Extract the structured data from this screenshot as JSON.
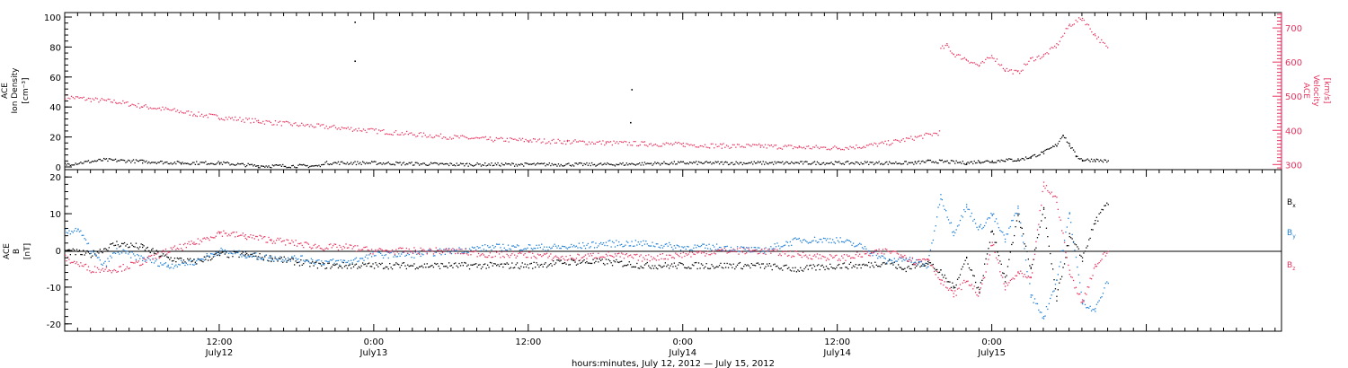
{
  "colors": {
    "black": "#000000",
    "pink": "#e8335f",
    "blue": "#1e7fd8"
  },
  "chart_data": [
    {
      "type": "scatter",
      "panel": "top",
      "ylabel_left": [
        "ACE",
        "Ion Density",
        "[cm⁻³]"
      ],
      "ylabel_right": [
        "ACE",
        "Velocity",
        "[km/s]"
      ],
      "yticks_left": [
        "0",
        "20",
        "40",
        "60",
        "80",
        "100"
      ],
      "yticks_right": [
        "300",
        "400",
        "500",
        "600",
        "700"
      ],
      "ylim_left": [
        0,
        100
      ],
      "ylim_right": [
        285,
        745
      ],
      "x_unit": "hours since July 12, 2012 00:00",
      "xlim": [
        0,
        94.5
      ],
      "series": [
        {
          "color": "#000000",
          "axis": "left",
          "x": [
            0,
            3,
            6,
            9,
            12,
            15,
            19.9,
            20,
            24,
            30,
            36,
            42,
            48,
            54,
            60,
            64,
            66,
            67,
            68,
            70,
            71,
            72,
            73,
            74,
            75,
            76,
            77,
            77.5,
            78,
            78.5,
            79,
            80,
            81
          ],
          "y": [
            2,
            5,
            4,
            3,
            3,
            1,
            1,
            3,
            3,
            2,
            2,
            2,
            3,
            3,
            3,
            3,
            3,
            4,
            4,
            3,
            4,
            4,
            5,
            5,
            7,
            10,
            15,
            22,
            15,
            8,
            5,
            5,
            4
          ]
        },
        {
          "color": "#e8335f",
          "axis": "right",
          "x": [
            0,
            2,
            4,
            6,
            8,
            10,
            12,
            15,
            18,
            21,
            24,
            27,
            30,
            33,
            36,
            39,
            42,
            45,
            48,
            51,
            54,
            57,
            60,
            62,
            64,
            66,
            67.9,
            68,
            68.5,
            69,
            70,
            71,
            72,
            73,
            74,
            75,
            76,
            77,
            78,
            79,
            80,
            81
          ],
          "y": [
            500,
            492,
            485,
            472,
            462,
            450,
            440,
            428,
            418,
            410,
            400,
            390,
            382,
            375,
            372,
            368,
            365,
            362,
            360,
            356,
            355,
            352,
            350,
            355,
            365,
            380,
            395,
            640,
            650,
            625,
            610,
            590,
            620,
            580,
            570,
            610,
            620,
            650,
            710,
            730,
            680,
            640
          ]
        }
      ],
      "outliers": [
        {
          "x": 22.5,
          "y": 97
        },
        {
          "x": 22.5,
          "y": 71
        },
        {
          "x": 44,
          "y": 52
        },
        {
          "x": 43.9,
          "y": 30
        }
      ]
    },
    {
      "type": "scatter",
      "panel": "bottom",
      "ylabel_left": [
        "ACE",
        "B",
        "[nT]"
      ],
      "yticks_left": [
        "-20",
        "-10",
        "0",
        "10",
        "20"
      ],
      "ylim": [
        -22,
        22
      ],
      "x_unit": "hours since July 12, 2012 00:00",
      "xlim": [
        0,
        94.5
      ],
      "legend": [
        "Bₓ",
        "Bᵧ",
        "B_z"
      ],
      "legend_text": {
        "bx_main": "B",
        "bx_sub": "x",
        "by_main": "B",
        "by_sub": "y",
        "bz_main": "B",
        "bz_sub": "z"
      },
      "series": [
        {
          "name": "Bx",
          "color": "#000000",
          "x": [
            0,
            2,
            4,
            6,
            8,
            10,
            12,
            14,
            16,
            18,
            20,
            22,
            24,
            27,
            30,
            33,
            36,
            39,
            42,
            45,
            48,
            51,
            54,
            57,
            60,
            62,
            64,
            65,
            66,
            67,
            68,
            69,
            70,
            71,
            72,
            73,
            74,
            75,
            76,
            77,
            78,
            79,
            80,
            81
          ],
          "y": [
            0,
            -1,
            2,
            1,
            -2,
            -3,
            -1,
            -1,
            -2,
            -3,
            -4,
            -4,
            -4,
            -4,
            -4,
            -4,
            -4,
            -3,
            -3,
            -4,
            -4,
            -4,
            -4,
            -5,
            -4,
            -4,
            -3,
            -5,
            -4,
            -3,
            -6,
            -10,
            -2,
            -11,
            6,
            -8,
            10,
            -5,
            11,
            -13,
            4,
            -2,
            8,
            13
          ]
        },
        {
          "name": "By",
          "color": "#1e7fd8",
          "x": [
            0,
            1,
            2,
            3,
            4,
            6,
            8,
            10,
            12,
            14,
            16,
            18,
            20,
            22,
            24,
            27,
            30,
            33,
            36,
            39,
            42,
            45,
            48,
            51,
            54,
            57,
            60,
            62,
            64,
            65,
            66,
            67,
            68,
            69,
            70,
            71,
            72,
            73,
            74,
            75,
            76,
            77,
            78,
            79,
            80,
            81
          ],
          "y": [
            5,
            6,
            0,
            -4,
            0,
            -2,
            -4,
            -3,
            0,
            -1,
            -2,
            -2,
            -3,
            -3,
            -1,
            -1,
            0,
            1,
            1,
            1,
            2,
            2,
            1,
            1,
            0,
            3,
            3,
            1,
            -3,
            -2,
            -3,
            -4,
            15,
            5,
            12,
            6,
            10,
            3,
            12,
            -12,
            -18,
            -8,
            10,
            -14,
            -16,
            -8
          ]
        },
        {
          "name": "Bz",
          "color": "#e8335f",
          "x": [
            0,
            2,
            4,
            6,
            8,
            10,
            12,
            14,
            16,
            18,
            20,
            22,
            24,
            27,
            30,
            33,
            36,
            39,
            42,
            45,
            48,
            51,
            54,
            57,
            60,
            62,
            64,
            65,
            66,
            67,
            68,
            69,
            70,
            71,
            72,
            73,
            74,
            75,
            76,
            77,
            78,
            79,
            80,
            81
          ],
          "y": [
            -2,
            -5,
            -5,
            -3,
            0,
            2,
            5,
            4,
            3,
            2,
            1,
            1,
            0,
            0,
            0,
            -1,
            -1,
            -2,
            -1,
            -2,
            -1,
            0,
            0,
            -1,
            -2,
            -1,
            0,
            -1,
            -3,
            -2,
            -8,
            -12,
            -8,
            -12,
            2,
            -10,
            -6,
            -8,
            18,
            14,
            -6,
            -14,
            -4,
            0
          ]
        }
      ]
    }
  ],
  "x_axis": {
    "ticks": [
      {
        "time": "12:00",
        "date": "July12",
        "hour": 12
      },
      {
        "time": "0:00",
        "date": "July13",
        "hour": 24
      },
      {
        "time": "12:00",
        "date": "",
        "hour": 36
      },
      {
        "time": "0:00",
        "date": "July14",
        "hour": 48
      },
      {
        "time": "12:00",
        "date": "July14",
        "hour": 60
      },
      {
        "time": "0:00",
        "date": "July15",
        "hour": 72
      }
    ],
    "label": "hours:minutes, July 12, 2012 — July 15, 2012"
  }
}
